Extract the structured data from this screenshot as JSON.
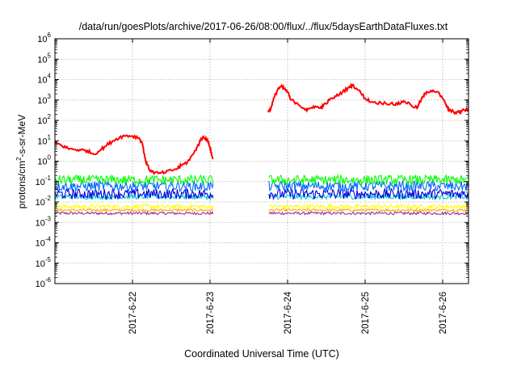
{
  "chart_data": {
    "type": "line",
    "title": "/data/run/goesPlots/archive/2017-06-26/08:00/flux/../flux/5daysEarthDataFluxes.txt",
    "xlabel": "Coordinated Universal Time (UTC)",
    "ylabel_parts": {
      "base": "protons/cm",
      "exp": "2",
      "rest": "-s-sr-MeV"
    },
    "yscale": "log",
    "ylim_exp": [
      -6,
      6
    ],
    "y_tick_exponents": [
      -6,
      -5,
      -4,
      -3,
      -2,
      -1,
      0,
      1,
      2,
      3,
      4,
      5,
      6
    ],
    "y_tick_base": "10",
    "xlim": [
      "2017-06-21 00:00",
      "2017-06-26 08:00"
    ],
    "x_ticks": [
      {
        "label": "2017-6-22",
        "date": "2017-06-22 00:00"
      },
      {
        "label": "2017-6-23",
        "date": "2017-06-23 00:00"
      },
      {
        "label": "2017-6-24",
        "date": "2017-06-24 00:00"
      },
      {
        "label": "2017-6-25",
        "date": "2017-06-25 00:00"
      },
      {
        "label": "2017-6-26",
        "date": "2017-06-26 00:00"
      }
    ],
    "grid": true,
    "data_gap": [
      "2017-06-23 01:00",
      "2017-06-23 18:00"
    ],
    "series": [
      {
        "color": "#ff0000",
        "points": [
          [
            "2017-06-21 00:00",
            8
          ],
          [
            "2017-06-21 02:00",
            6
          ],
          [
            "2017-06-21 04:00",
            4.2
          ],
          [
            "2017-06-21 06:00",
            3.8
          ],
          [
            "2017-06-21 08:00",
            3.5
          ],
          [
            "2017-06-21 10:00",
            3.3
          ],
          [
            "2017-06-21 12:00",
            2.2
          ],
          [
            "2017-06-21 14:00",
            3.5
          ],
          [
            "2017-06-21 16:00",
            6
          ],
          [
            "2017-06-21 18:00",
            10
          ],
          [
            "2017-06-21 20:00",
            15
          ],
          [
            "2017-06-21 22:00",
            18
          ],
          [
            "2017-06-22 00:00",
            17
          ],
          [
            "2017-06-22 02:00",
            14
          ],
          [
            "2017-06-22 03:00",
            8
          ],
          [
            "2017-06-22 04:00",
            1.2
          ],
          [
            "2017-06-22 05:00",
            0.45
          ],
          [
            "2017-06-22 06:00",
            0.3
          ],
          [
            "2017-06-22 08:00",
            0.25
          ],
          [
            "2017-06-22 10:00",
            0.28
          ],
          [
            "2017-06-22 12:00",
            0.35
          ],
          [
            "2017-06-22 14:00",
            0.45
          ],
          [
            "2017-06-22 15:00",
            0.6
          ],
          [
            "2017-06-22 17:00",
            0.9
          ],
          [
            "2017-06-22 19:00",
            2.5
          ],
          [
            "2017-06-22 20:00",
            5
          ],
          [
            "2017-06-22 21:00",
            10
          ],
          [
            "2017-06-22 22:00",
            16
          ],
          [
            "2017-06-22 23:00",
            12
          ],
          [
            "2017-06-23 00:00",
            5
          ],
          [
            "2017-06-23 00:30",
            2
          ],
          [
            "2017-06-23 01:00",
            1.3
          ],
          null,
          [
            "2017-06-23 18:00",
            250
          ],
          [
            "2017-06-23 19:00",
            500
          ],
          [
            "2017-06-23 20:00",
            1500
          ],
          [
            "2017-06-23 21:00",
            3500
          ],
          [
            "2017-06-23 22:00",
            4500
          ],
          [
            "2017-06-23 23:00",
            3500
          ],
          [
            "2017-06-24 00:00",
            2500
          ],
          [
            "2017-06-24 01:00",
            1000
          ],
          [
            "2017-06-24 03:00",
            700
          ],
          [
            "2017-06-24 05:00",
            400
          ],
          [
            "2017-06-24 06:00",
            300
          ],
          [
            "2017-06-24 08:00",
            500
          ],
          [
            "2017-06-24 10:00",
            400
          ],
          [
            "2017-06-24 11:00",
            500
          ],
          [
            "2017-06-24 13:00",
            1000
          ],
          [
            "2017-06-24 15:00",
            1500
          ],
          [
            "2017-06-24 17:00",
            2500
          ],
          [
            "2017-06-24 19:00",
            4000
          ],
          [
            "2017-06-24 20:00",
            5500
          ],
          [
            "2017-06-24 22:00",
            3000
          ],
          [
            "2017-06-25 00:00",
            1200
          ],
          [
            "2017-06-25 02:00",
            800
          ],
          [
            "2017-06-25 05:00",
            700
          ],
          [
            "2017-06-25 08:00",
            700
          ],
          [
            "2017-06-25 10:00",
            600
          ],
          [
            "2017-06-25 12:00",
            900
          ],
          [
            "2017-06-25 14:00",
            600
          ],
          [
            "2017-06-25 16:00",
            400
          ],
          [
            "2017-06-25 17:00",
            800
          ],
          [
            "2017-06-25 18:00",
            1500
          ],
          [
            "2017-06-25 19:00",
            2500
          ],
          [
            "2017-06-25 21:00",
            3000
          ],
          [
            "2017-06-25 23:00",
            2000
          ],
          [
            "2017-06-26 01:00",
            600
          ],
          [
            "2017-06-26 02:00",
            300
          ],
          [
            "2017-06-26 04:00",
            250
          ],
          [
            "2017-06-26 05:00",
            250
          ],
          [
            "2017-06-26 06:00",
            300
          ],
          [
            "2017-06-26 08:00",
            350
          ]
        ]
      },
      {
        "color": "#00ff00",
        "level": 0.12,
        "spread": 0.24
      },
      {
        "color": "#0066ff",
        "level": 0.06,
        "spread": 0.25
      },
      {
        "color": "#0000dd",
        "level": 0.025,
        "spread": 0.25
      },
      {
        "color": "#00cccc",
        "level": 0.018,
        "spread": 0.12
      },
      {
        "color": "#ffff00",
        "level": 0.006,
        "spread": 0.1
      },
      {
        "color": "#ffaa00",
        "level": 0.004,
        "spread": 0.06
      },
      {
        "color": "#993399",
        "level": 0.0028,
        "spread": 0.07
      }
    ]
  }
}
